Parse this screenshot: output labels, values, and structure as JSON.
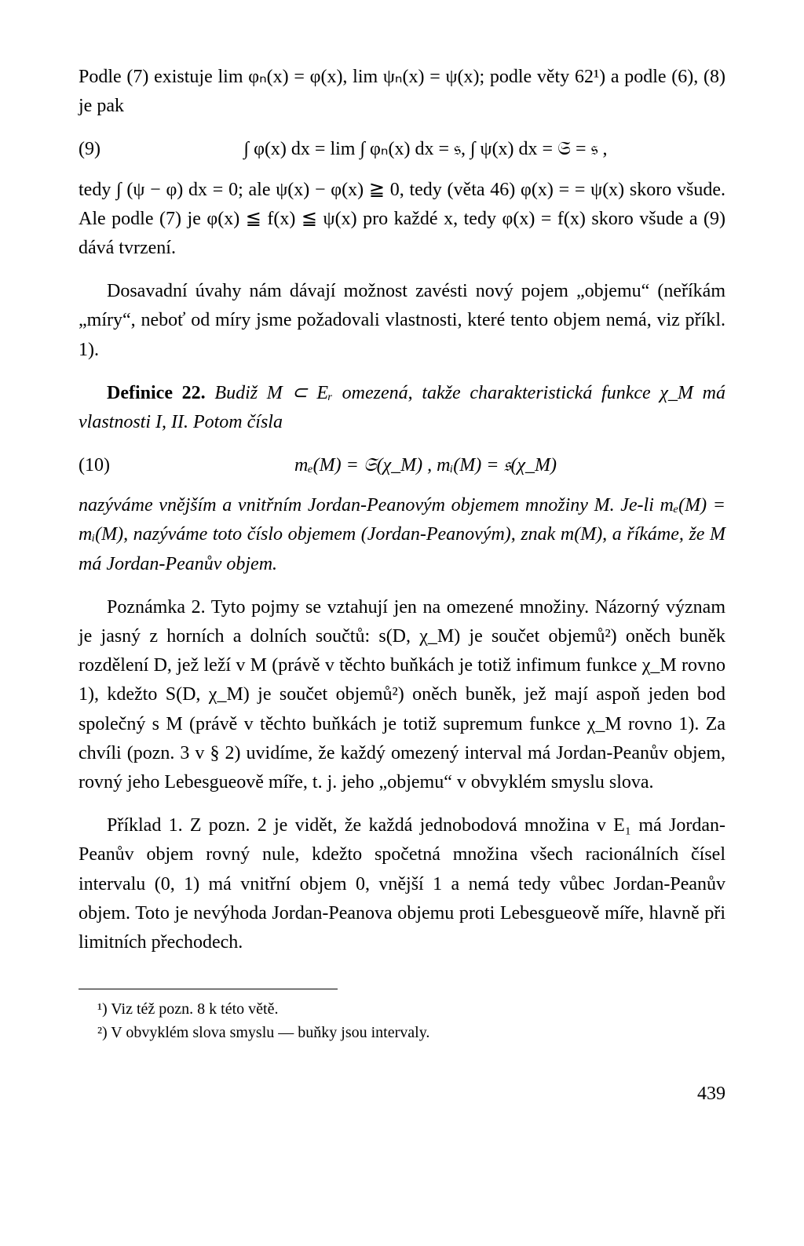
{
  "page": {
    "number": "439"
  },
  "p1": "Podle (7) existuje lim φₙ(x) = φ(x), lim ψₙ(x) = ψ(x); podle věty 62¹) a podle (6), (8) je pak",
  "eq9_num": "(9)",
  "eq9_body": "∫ φ(x) dx = lim ∫ φₙ(x) dx = 𝔰,  ∫ ψ(x) dx = 𝔖 = 𝔰 ,",
  "p2": "tedy ∫ (ψ − φ) dx = 0; ale ψ(x) − φ(x) ≧ 0, tedy (věta 46) φ(x) = = ψ(x) skoro všude. Ale podle (7) je φ(x) ≦ f(x) ≦ ψ(x) pro každé x, tedy φ(x) = f(x) skoro všude a (9) dává tvrzení.",
  "p3": "Dosavadní úvahy nám dávají možnost zavésti nový pojem „objemu“ (neříkám „míry“, neboť od míry jsme požadovali vlastnosti, které tento objem nemá, viz příkl. 1).",
  "def_heading": "Definice 22.",
  "def_body": " Budiž M ⊂ Eᵣ omezená, takže charakteristická funkce χ_M má vlastnosti I, II. Potom čísla",
  "eq10_num": "(10)",
  "eq10_body": "mₑ(M) = 𝔖(χ_M) ,   mᵢ(M) = 𝔰(χ_M)",
  "p_def2": "nazýváme vnějším a vnitřním Jordan-Peanovým objemem množiny M. Je-li mₑ(M) = mᵢ(M), nazýváme toto číslo objemem (Jordan-Peanovým), znak m(M), a říkáme, že M má Jordan-Peanův objem.",
  "p4": "Poznámka 2. Tyto pojmy se vztahují jen na omezené množiny. Názorný význam je jasný z horních a dolních součtů: s(D, χ_M) je součet objemů²) oněch buněk rozdělení D, jež leží v M (právě v těchto buňkách je totiž infimum funkce χ_M rovno 1), kdežto S(D, χ_M) je součet objemů²) oněch buněk, jež mají aspoň jeden bod společný s M (právě v těchto buňkách je totiž supremum funkce χ_M rovno 1). Za chvíli (pozn. 3 v § 2) uvidíme, že každý omezený interval má Jordan-Peanův objem, rovný jeho Lebesgueově míře, t. j. jeho „objemu“ v obvyklém smyslu slova.",
  "p5": "Příklad 1. Z pozn. 2 je vidět, že každá jednobodová množina v E₁ má Jordan-Peanův objem rovný nule, kdežto spočetná množina všech racionálních čísel intervalu (0, 1) má vnitřní objem 0, vnější 1 a nemá tedy vůbec Jordan-Peanův objem. Toto je nevýhoda Jordan-Peanova objemu proti Lebesgueově míře, hlavně při limitních přechodech.",
  "fn1": "¹) Viz též pozn. 8 k této větě.",
  "fn2": "²) V obvyklém slova smyslu — buňky jsou intervaly."
}
